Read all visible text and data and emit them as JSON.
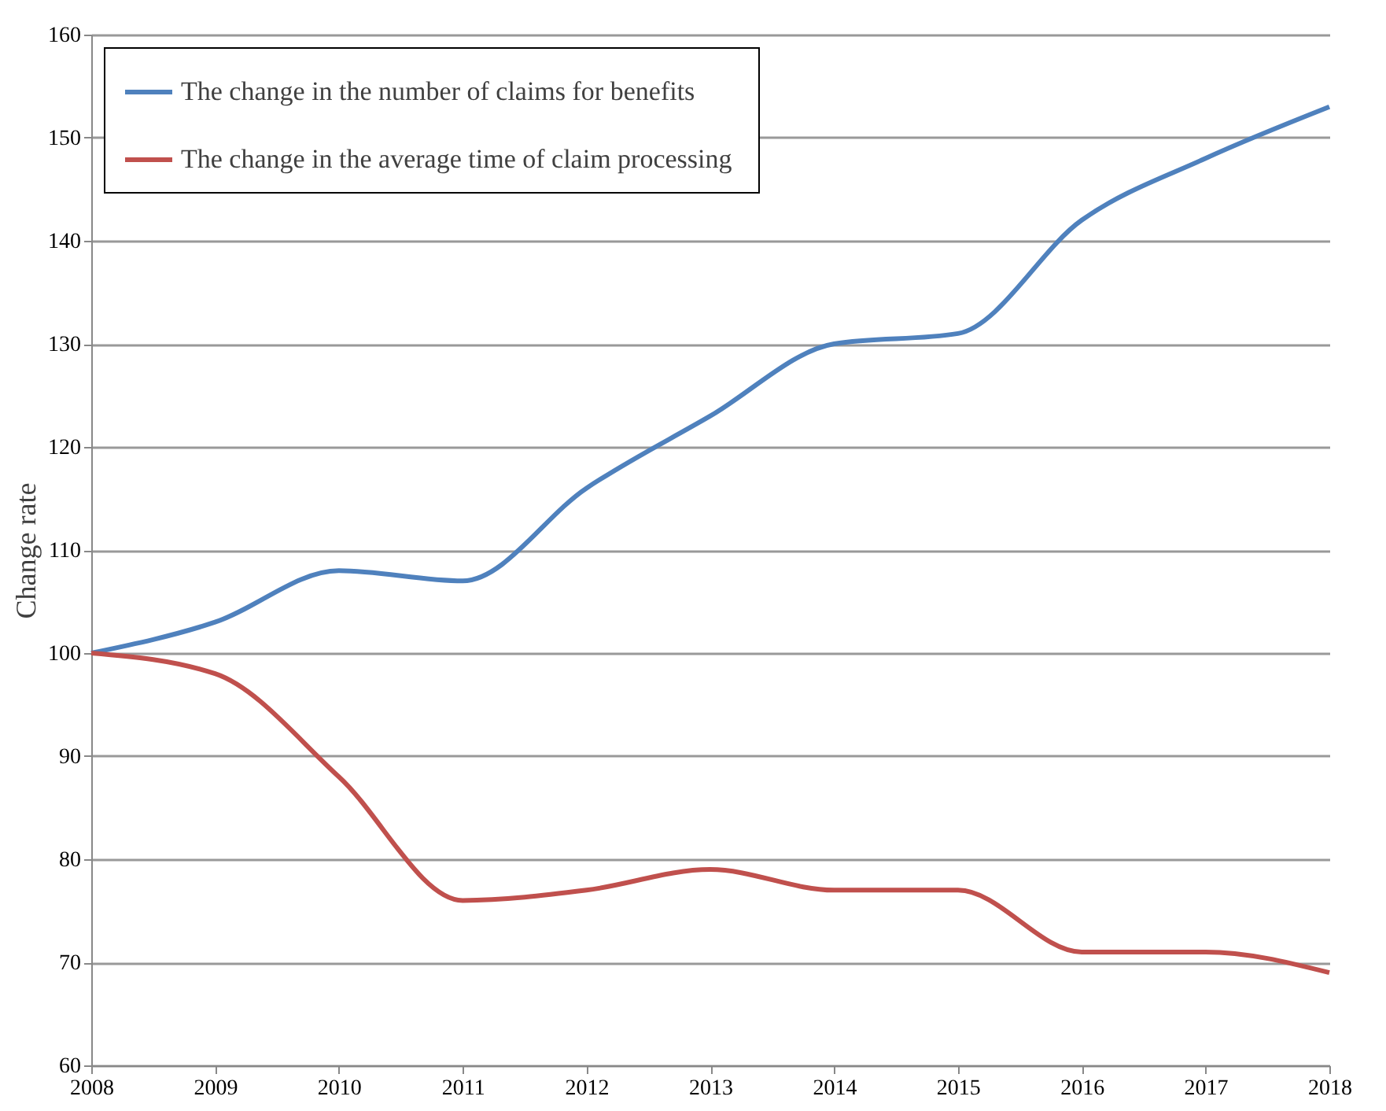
{
  "chart_data": {
    "type": "line",
    "ylabel": "Change rate",
    "x": [
      2008,
      2009,
      2010,
      2011,
      2012,
      2013,
      2014,
      2015,
      2016,
      2017,
      2018
    ],
    "series": [
      {
        "name": "The change in the number of claims for benefits",
        "color": "#4f81bd",
        "values": [
          100,
          103,
          108,
          107,
          116,
          123,
          130,
          131,
          142,
          148,
          153
        ]
      },
      {
        "name": "The change in the average time of  claim processing",
        "color": "#c0504d",
        "values": [
          100,
          98,
          88,
          76,
          77,
          79,
          77,
          77,
          71,
          71,
          69
        ]
      }
    ],
    "xlim": [
      2008,
      2018
    ],
    "xticks": [
      2008,
      2009,
      2010,
      2011,
      2012,
      2013,
      2014,
      2015,
      2016,
      2017,
      2018
    ],
    "ylim": [
      60,
      160
    ],
    "yticks": [
      60,
      70,
      80,
      90,
      100,
      110,
      120,
      130,
      140,
      150,
      160
    ],
    "grid": "y",
    "legend": "top left",
    "marker": "none",
    "line_style": "solid"
  }
}
